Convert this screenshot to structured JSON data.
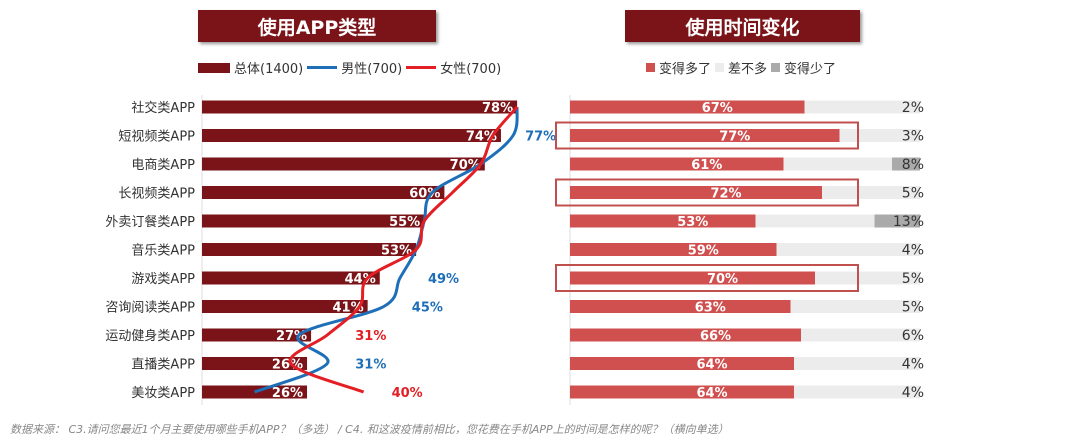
{
  "footer": "数据来源： C3.请问您最近1个月主要使用哪些手机APP？（多选） / C4. 和这波疫情前相比，您花费在手机APP上的时间是怎样的呢？（横向单选）",
  "colors": {
    "overall": "#7b1418",
    "male": "#1f6fb8",
    "female": "#e31e24",
    "more": "#d0504f",
    "same": "#ececec",
    "less": "#aaaaaa",
    "highlight": "#c0504d"
  },
  "chart_data": [
    {
      "type": "bar",
      "title": "使用APP类型",
      "legend": [
        "总体(1400)",
        "男性(700)",
        "女性(700)"
      ],
      "categories": [
        "社交类APP",
        "短视频类APP",
        "电商类APP",
        "长视频类APP",
        "外卖订餐类APP",
        "音乐类APP",
        "游戏类APP",
        "咨询阅读类APP",
        "运动健身类APP",
        "直播类APP",
        "美妆类APP"
      ],
      "series": [
        {
          "name": "总体(1400)",
          "type": "bar",
          "values": [
            78,
            74,
            70,
            60,
            55,
            53,
            44,
            41,
            27,
            26,
            26
          ]
        },
        {
          "name": "男性(700)",
          "type": "line",
          "values": [
            78,
            77,
            69,
            57,
            55,
            53,
            49,
            45,
            24,
            31,
            13
          ],
          "labeled": [
            null,
            77,
            null,
            null,
            null,
            null,
            49,
            45,
            null,
            31,
            null
          ]
        },
        {
          "name": "女性(700)",
          "type": "line",
          "values": [
            78,
            72,
            69,
            62,
            55,
            53,
            41,
            39,
            31,
            22,
            40
          ],
          "labeled": [
            null,
            null,
            null,
            null,
            null,
            null,
            null,
            null,
            31,
            null,
            40
          ]
        }
      ],
      "xlim": [
        0,
        100
      ]
    },
    {
      "type": "bar",
      "stacked": true,
      "title": "使用时间变化",
      "legend": [
        "变得多了",
        "差不多",
        "变得少了"
      ],
      "categories": [
        "社交类APP",
        "短视频类APP",
        "电商类APP",
        "长视频类APP",
        "外卖订餐类APP",
        "音乐类APP",
        "游戏类APP",
        "咨询阅读类APP",
        "运动健身类APP",
        "直播类APP",
        "美妆类APP"
      ],
      "series": [
        {
          "name": "变得多了",
          "values": [
            67,
            77,
            61,
            72,
            53,
            59,
            70,
            63,
            66,
            64,
            64
          ]
        },
        {
          "name": "变得少了",
          "values": [
            2,
            3,
            8,
            5,
            13,
            4,
            5,
            5,
            6,
            4,
            4
          ]
        }
      ],
      "highlighted": [
        "短视频类APP",
        "长视频类APP",
        "游戏类APP"
      ],
      "xlim": [
        0,
        100
      ]
    }
  ]
}
